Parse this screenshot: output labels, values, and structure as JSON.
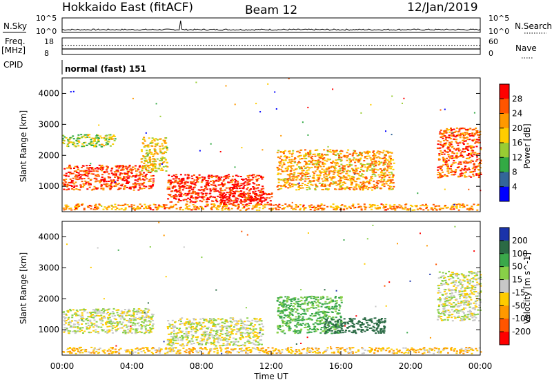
{
  "header": {
    "radar": "Hokkaido East (fitACF)",
    "beam": "Beam 12",
    "date": "12/Jan/2019"
  },
  "noise_panel": {
    "left_label": "N.Sky",
    "right_label": "N.Search",
    "left_ticks": [
      "10^5",
      "10^0"
    ],
    "right_ticks": [
      "10^5",
      "10^0"
    ]
  },
  "freq_panel": {
    "left_label": "Freq.",
    "left_unit": "[MHz]",
    "right_label": "Nave",
    "left_ticks": [
      "18",
      "8"
    ],
    "right_ticks": [
      "60",
      "0"
    ]
  },
  "cpid_panel": {
    "label": "CPID",
    "value": "normal (fast) 151"
  },
  "chart_data": [
    {
      "type": "heatmap",
      "name": "power",
      "ylabel": "Slant Range [km]",
      "yticks": [
        "4000",
        "3000",
        "2000",
        "1000"
      ],
      "ylim": [
        180,
        4500
      ],
      "xlim": [
        0,
        24
      ],
      "xticks": [
        "00:00",
        "04:00",
        "08:00",
        "12:00",
        "16:00",
        "20:00",
        "00:00"
      ],
      "colorbar": {
        "label": "Power [dB]",
        "ticks": [
          "28",
          "24",
          "20",
          "16",
          "12",
          "8",
          "4"
        ],
        "colors": [
          "#ff0000",
          "#ff5500",
          "#ff9900",
          "#ffcc00",
          "#99cc33",
          "#33aa44",
          "#336699",
          "#0000ff"
        ]
      },
      "regions": [
        {
          "t0": 0.0,
          "t1": 5.2,
          "r0": 900,
          "r1": 1700,
          "level": 0.85
        },
        {
          "t0": 4.5,
          "t1": 6.0,
          "r0": 1500,
          "r1": 2600,
          "level": 0.55
        },
        {
          "t0": 6.0,
          "t1": 11.5,
          "r0": 500,
          "r1": 1400,
          "level": 0.9
        },
        {
          "t0": 9.0,
          "t1": 12.0,
          "r0": 400,
          "r1": 800,
          "level": 0.95
        },
        {
          "t0": 12.3,
          "t1": 19.0,
          "r0": 900,
          "r1": 2200,
          "level": 0.65
        },
        {
          "t0": 21.5,
          "t1": 24.0,
          "r0": 1300,
          "r1": 2900,
          "level": 0.8
        },
        {
          "t0": 0.0,
          "t1": 24.0,
          "r0": 250,
          "r1": 450,
          "level": 0.7
        },
        {
          "t0": 0.0,
          "t1": 3.0,
          "r0": 2300,
          "r1": 2700,
          "level": 0.45
        }
      ]
    },
    {
      "type": "heatmap",
      "name": "velocity",
      "ylabel": "Slant Range [km]",
      "yticks": [
        "4000",
        "3000",
        "2000",
        "1000"
      ],
      "ylim": [
        180,
        4500
      ],
      "xlim": [
        0,
        24
      ],
      "xticks": [
        "00:00",
        "04:00",
        "08:00",
        "12:00",
        "16:00",
        "20:00",
        "00:00"
      ],
      "xlabel": "Time UT",
      "colorbar": {
        "label": "Velocity [m s^-1]",
        "ticks": [
          "200",
          "100",
          "50",
          "15",
          "-15",
          "-50",
          "-100",
          "-200"
        ],
        "colors": [
          "#1a33aa",
          "#2a6a44",
          "#3aa84a",
          "#88d048",
          "#c8c8c8",
          "#ffcc00",
          "#ff9900",
          "#ff5500",
          "#ff0000"
        ]
      },
      "regions": [
        {
          "t0": 0.0,
          "t1": 5.2,
          "r0": 900,
          "r1": 1700,
          "vel": 0
        },
        {
          "t0": 6.0,
          "t1": 11.5,
          "r0": 500,
          "r1": 1400,
          "vel": 0
        },
        {
          "t0": 12.3,
          "t1": 16.0,
          "r0": 900,
          "r1": 2100,
          "vel": 60
        },
        {
          "t0": 15.0,
          "t1": 18.5,
          "r0": 900,
          "r1": 1400,
          "vel": 150
        },
        {
          "t0": 21.5,
          "t1": 24.0,
          "r0": 1300,
          "r1": 2900,
          "vel": 0
        },
        {
          "t0": 0.0,
          "t1": 24.0,
          "r0": 250,
          "r1": 450,
          "vel": -40
        }
      ]
    }
  ]
}
